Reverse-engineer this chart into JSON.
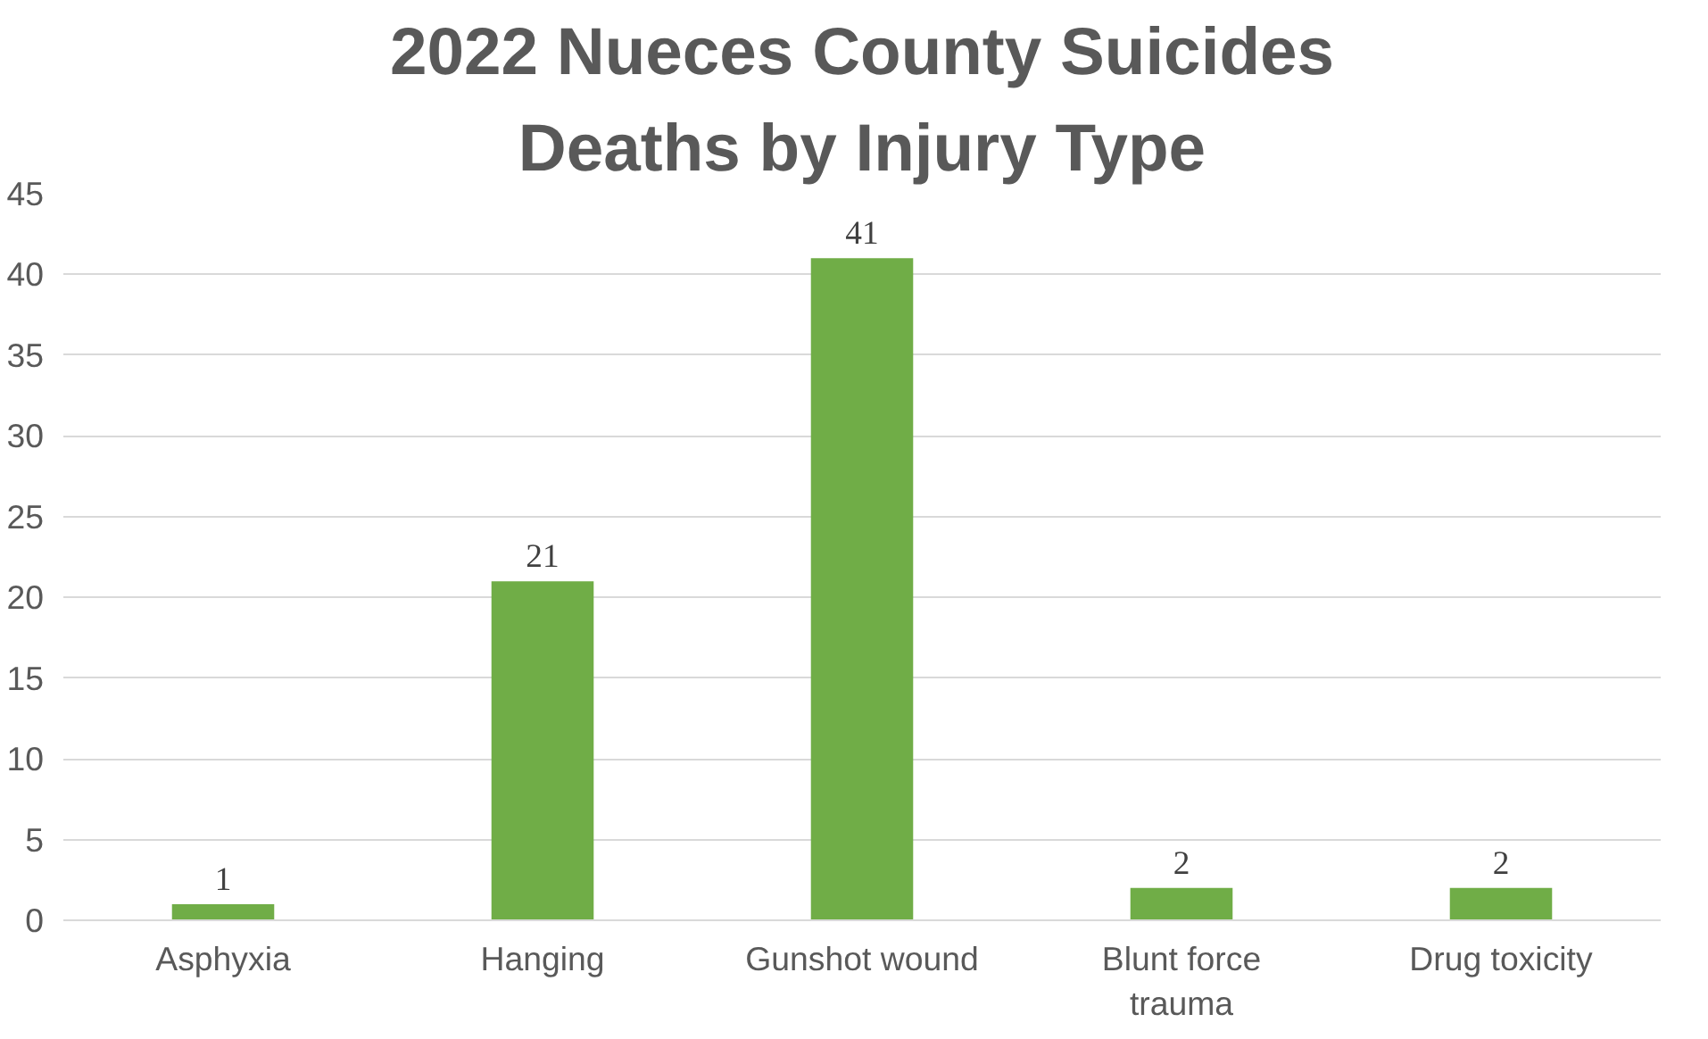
{
  "chart_data": {
    "type": "bar",
    "title": "2022 Nueces County Suicides",
    "subtitle": "Deaths by Injury Type",
    "categories": [
      "Asphyxia",
      "Hanging",
      "Gunshot wound",
      "Blunt force trauma",
      "Drug toxicity"
    ],
    "values": [
      1,
      21,
      41,
      2,
      2
    ],
    "color": "#70ad47",
    "ylim": [
      0,
      45
    ],
    "yticks": [
      0,
      5,
      10,
      15,
      20,
      25,
      30,
      35,
      40,
      45
    ],
    "grid": "y",
    "data_labels": true
  }
}
